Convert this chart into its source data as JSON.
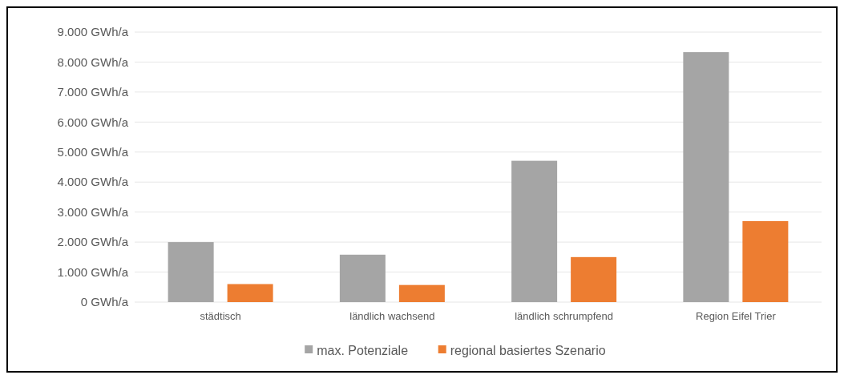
{
  "chart_data": {
    "type": "bar",
    "categories": [
      "städtisch",
      "ländlich wachsend",
      "ländlich schrumpfend",
      "Region Eifel Trier"
    ],
    "series": [
      {
        "name": "max. Potenziale",
        "color": "#a5a5a5",
        "values": [
          2000,
          1580,
          4710,
          8330
        ]
      },
      {
        "name": "regional basiertes Szenario",
        "color": "#ed7d31",
        "values": [
          600,
          570,
          1500,
          2700
        ]
      }
    ],
    "ylim": [
      0,
      9000
    ],
    "yticks": [
      {
        "value": 0,
        "label": "0 GWh/a"
      },
      {
        "value": 1000,
        "label": "1.000 GWh/a"
      },
      {
        "value": 2000,
        "label": "2.000 GWh/a"
      },
      {
        "value": 3000,
        "label": "3.000 GWh/a"
      },
      {
        "value": 4000,
        "label": "4.000 GWh/a"
      },
      {
        "value": 5000,
        "label": "5.000 GWh/a"
      },
      {
        "value": 6000,
        "label": "6.000 GWh/a"
      },
      {
        "value": 7000,
        "label": "7.000 GWh/a"
      },
      {
        "value": 8000,
        "label": "8.000 GWh/a"
      },
      {
        "value": 9000,
        "label": "9.000 GWh/a"
      }
    ],
    "grid": "y",
    "legend": "bottom"
  }
}
